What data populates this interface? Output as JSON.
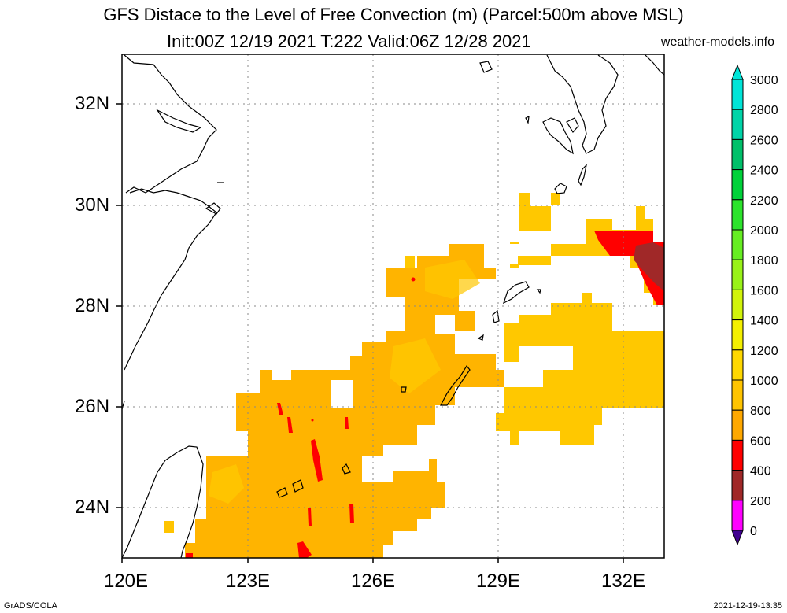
{
  "title_line1": "GFS Distace to the Level of Free Convection (m) (Parcel:500m above MSL)",
  "title_line2": "Init:00Z 12/19 2021 T:222 Valid:06Z 12/28 2021",
  "site": "weather-models.info",
  "footer_left": "GrADS/COLA",
  "footer_right": "2021-12-19-13:35",
  "lat_labels": [
    "32N",
    "30N",
    "28N",
    "26N",
    "24N"
  ],
  "lon_labels": [
    "120E",
    "123E",
    "126E",
    "129E",
    "132E"
  ],
  "colorbar": {
    "labels": [
      "3000",
      "2800",
      "2600",
      "2400",
      "2200",
      "2000",
      "1800",
      "1600",
      "1400",
      "1200",
      "1000",
      "800",
      "600",
      "400",
      "200",
      "0"
    ],
    "colors": [
      "#00e5d8",
      "#00d4a8",
      "#00c06a",
      "#00d23a",
      "#2ce42c",
      "#66ee22",
      "#99f218",
      "#d2f40a",
      "#f4f000",
      "#ffd800",
      "#ffc400",
      "#ffa800",
      "#ff0000",
      "#a02828",
      "#ff00ff",
      "#400090"
    ]
  },
  "map": {
    "lon_range": [
      120,
      133
    ],
    "lat_range": [
      23,
      33
    ],
    "grid": true,
    "field_colors": {
      "c800": "#ffa800",
      "c1000": "#ffc400",
      "c1200": "#ffd800",
      "c400": "#a02828",
      "c600": "#ff0000"
    }
  }
}
